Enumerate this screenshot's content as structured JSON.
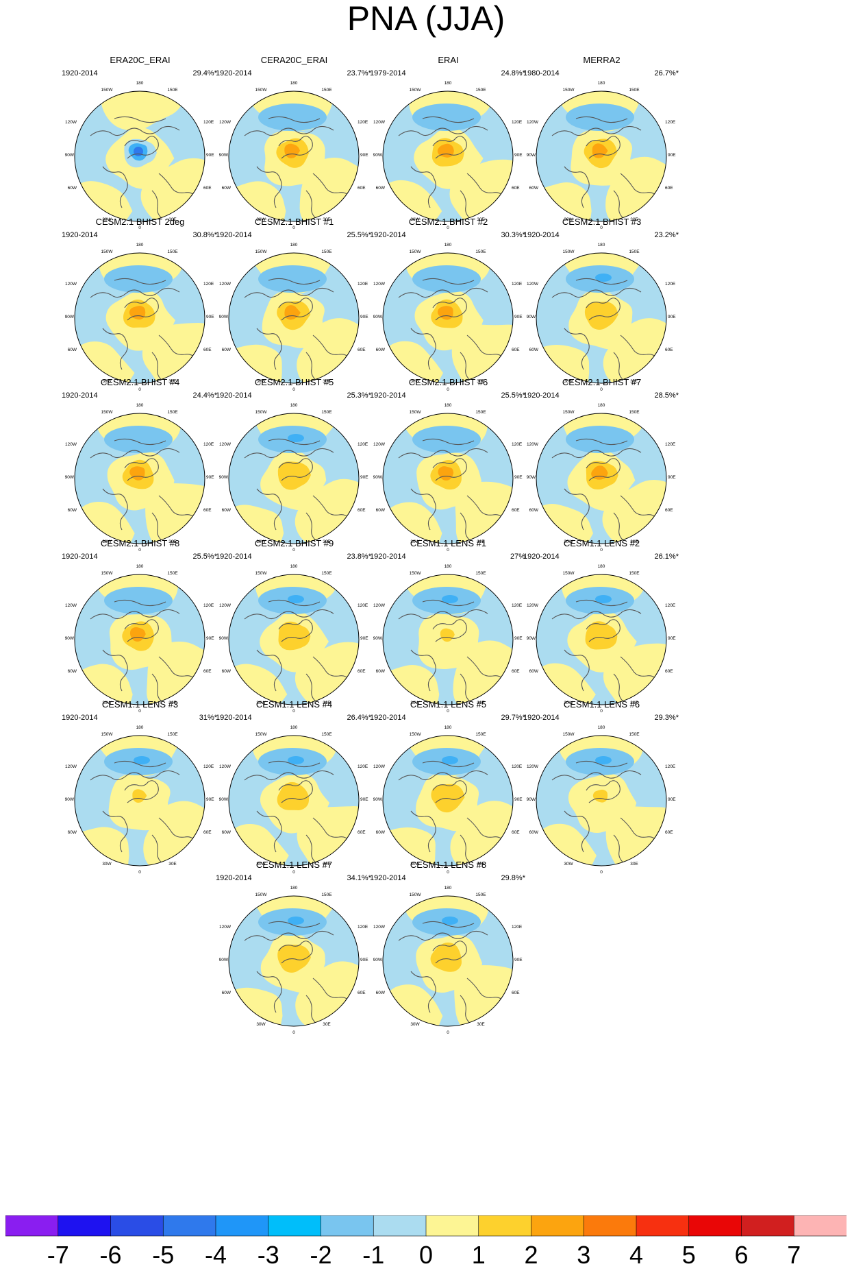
{
  "title": "PNA (JJA)",
  "colors": {
    "land_line": "#555555",
    "ocean_land_ring": "#000000",
    "neg1": "#abdcf0",
    "neg2": "#79c5ef",
    "neg3": "#3fb0f5",
    "pos1": "#fdf594",
    "pos2": "#fdd12d",
    "pos3": "#fca40f"
  },
  "chart_data": {
    "type": "polar-map-panels",
    "variable": "PNA pattern (JJA)",
    "map_ticks": [
      "180",
      "150W",
      "150E",
      "120W",
      "120E",
      "90W",
      "90E",
      "60W",
      "60E",
      "30W",
      "30E",
      "0"
    ],
    "panels": [
      {
        "title": "ERA20C_ERAI",
        "years": "1920-2014",
        "pct": "29.4%*",
        "center": -3
      },
      {
        "title": "CERA20C_ERAI",
        "years": "1920-2014",
        "pct": "23.7%*",
        "center": 3
      },
      {
        "title": "ERAI",
        "years": "1979-2014",
        "pct": "24.8%*",
        "center": 3
      },
      {
        "title": "MERRA2",
        "years": "1980-2014",
        "pct": "26.7%*",
        "center": 3
      },
      {
        "title": "CESM2.1 BHIST 2deg",
        "years": "1920-2014",
        "pct": "30.8%*",
        "center": 3
      },
      {
        "title": "CESM2.1 BHIST #1",
        "years": "1920-2014",
        "pct": "25.5%*",
        "center": 3
      },
      {
        "title": "CESM2.1 BHIST #2",
        "years": "1920-2014",
        "pct": "30.3%*",
        "center": 3
      },
      {
        "title": "CESM2.1 BHIST #3",
        "years": "1920-2014",
        "pct": "23.2%*",
        "center": 2
      },
      {
        "title": "CESM2.1 BHIST #4",
        "years": "1920-2014",
        "pct": "24.4%*",
        "center": 3
      },
      {
        "title": "CESM2.1 BHIST #5",
        "years": "1920-2014",
        "pct": "25.3%*",
        "center": 2
      },
      {
        "title": "CESM2.1 BHIST #6",
        "years": "1920-2014",
        "pct": "25.5%*",
        "center": 3
      },
      {
        "title": "CESM2.1 BHIST #7",
        "years": "1920-2014",
        "pct": "28.5%*",
        "center": 3
      },
      {
        "title": "CESM2.1 BHIST #8",
        "years": "1920-2014",
        "pct": "25.5%*",
        "center": 3
      },
      {
        "title": "CESM2.1 BHIST #9",
        "years": "1920-2014",
        "pct": "23.8%*",
        "center": 2
      },
      {
        "title": "CESM1.1 LENS #1",
        "years": "1920-2014",
        "pct": "27%",
        "center": 1
      },
      {
        "title": "CESM1.1 LENS #2",
        "years": "1920-2014",
        "pct": "26.1%*",
        "center": 2
      },
      {
        "title": "CESM1.1 LENS #3",
        "years": "1920-2014",
        "pct": "31%*",
        "center": 1
      },
      {
        "title": "CESM1.1 LENS #4",
        "years": "1920-2014",
        "pct": "26.4%*",
        "center": 2
      },
      {
        "title": "CESM1.1 LENS #5",
        "years": "1920-2014",
        "pct": "29.7%*",
        "center": 2
      },
      {
        "title": "CESM1.1 LENS #6",
        "years": "1920-2014",
        "pct": "29.3%*",
        "center": 1
      },
      {
        "title": "CESM1.1 LENS #7",
        "years": "1920-2014",
        "pct": "34.1%*",
        "center": 2
      },
      {
        "title": "CESM1.1 LENS #8",
        "years": "1920-2014",
        "pct": "29.8%*",
        "center": 2
      }
    ],
    "colorbar": {
      "labels": [
        "-7",
        "-6",
        "-5",
        "-4",
        "-3",
        "-2",
        "-1",
        "0",
        "1",
        "2",
        "3",
        "4",
        "5",
        "6",
        "7"
      ],
      "colors": [
        "#8a1ef0",
        "#1e12f0",
        "#2a4de6",
        "#2f79ec",
        "#1f96f8",
        "#00befa",
        "#79c5ef",
        "#abdcf0",
        "#fdf594",
        "#fdd12d",
        "#fca40f",
        "#fb7a0c",
        "#f73010",
        "#e90606",
        "#d11f1f",
        "#fdb4b4"
      ]
    }
  }
}
